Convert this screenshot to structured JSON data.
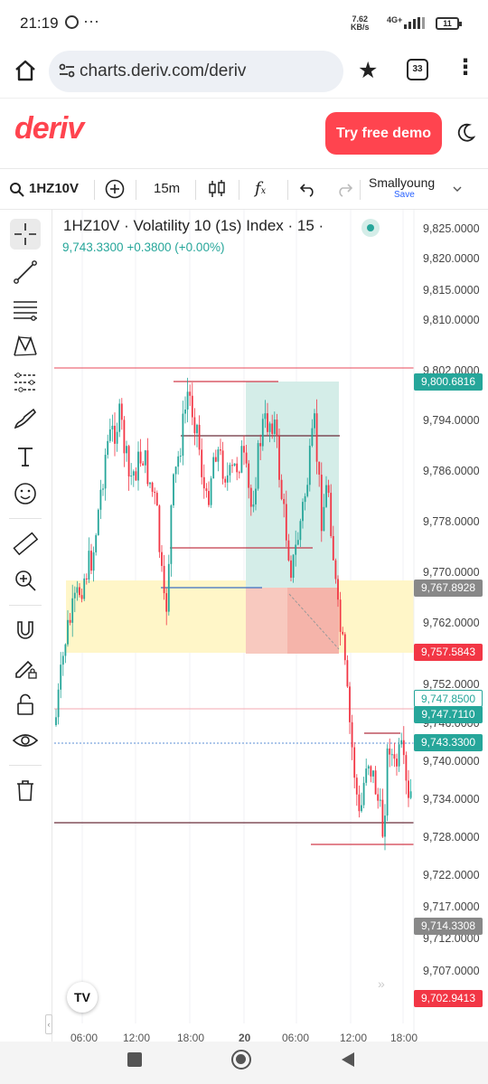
{
  "status": {
    "time": "21:19",
    "net_speed": "7.62",
    "net_unit": "KB/s",
    "network": "4G+",
    "battery": "11"
  },
  "browser": {
    "url": "charts.deriv.com/deriv",
    "tab_count": "33"
  },
  "header": {
    "logo": "deriv",
    "demo_button": "Try free demo"
  },
  "toolbar": {
    "symbol": "1HZ10V",
    "interval": "15m",
    "layout_name": "Smallyoung",
    "save_label": "Save"
  },
  "chart": {
    "title": "1HZ10V · Volatility 10 (1s) Index · 15 ·",
    "price": "9,743.3300",
    "change": "+0.3800",
    "change_pct": "(+0.00%)",
    "tv_label": "TV"
  },
  "price_axis": {
    "labels": [
      "9,825.0000",
      "9,820.0000",
      "9,815.0000",
      "9,810.0000",
      "9,802.0000",
      "9,794.0000",
      "9,786.0000",
      "9,778.0000",
      "9,770.0000",
      "9,762.0000",
      "9,752.0000",
      "9,746.0000",
      "9,740.0000",
      "9,734.0000",
      "9,728.0000",
      "9,722.0000",
      "9,717.0000",
      "9,712.0000",
      "9,707.0000"
    ],
    "tags": [
      {
        "value": "9,800.6816",
        "color": "#26a69a"
      },
      {
        "value": "9,767.8928",
        "color": "#888888"
      },
      {
        "value": "9,757.5843",
        "color": "#f23645"
      },
      {
        "value": "9,747.8500",
        "color": "#26a69a"
      },
      {
        "value": "9,747.7110",
        "color": "#26a69a"
      },
      {
        "value": "9,743.3300",
        "color": "#26a69a"
      },
      {
        "value": "9,714.3308",
        "color": "#888888"
      },
      {
        "value": "9,702.9413",
        "color": "#f23645"
      }
    ]
  },
  "time_axis": {
    "labels": [
      "06:00",
      "12:00",
      "18:00",
      "20",
      "06:00",
      "12:00",
      "18:00"
    ]
  },
  "colors": {
    "accent": "#ff444f",
    "up": "#26a69a",
    "down": "#f23645",
    "zone": "#fff6c8",
    "tp_zone": "#d4ede8",
    "sl_zone": "#f8c9bf"
  }
}
